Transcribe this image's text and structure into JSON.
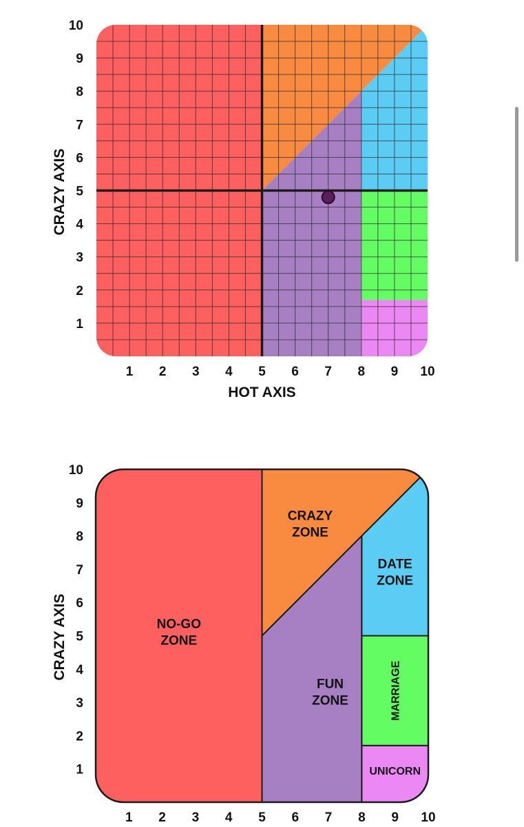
{
  "colors": {
    "nogo": "#fe5f5f",
    "crazy": "#f98b40",
    "fun": "#a77fc3",
    "date": "#5bcdf4",
    "marriage": "#63fd63",
    "unicorn": "#ec88f3",
    "point": "#5c1e5b",
    "line": "#1a1a1a"
  },
  "chart_data": [
    {
      "type": "scatter",
      "title": "",
      "xlabel": "HOT AXIS",
      "ylabel": "CRAZY AXIS",
      "xlim": [
        0,
        10
      ],
      "ylim": [
        0,
        10
      ],
      "x_ticks": [
        "1",
        "2",
        "3",
        "4",
        "5",
        "6",
        "7",
        "8",
        "9",
        "10"
      ],
      "y_ticks": [
        "1",
        "2",
        "3",
        "4",
        "5",
        "6",
        "7",
        "8",
        "9",
        "10"
      ],
      "grid": true,
      "grid_step": 0.5,
      "points": [
        {
          "x": 7,
          "y": 4.8
        }
      ],
      "center_lines": {
        "x": 5,
        "y": 5
      }
    },
    {
      "type": "area",
      "title": "",
      "xlabel": "",
      "ylabel": "CRAZY AXIS",
      "xlim": [
        0,
        10
      ],
      "ylim": [
        0,
        10
      ],
      "x_ticks": [
        "1",
        "2",
        "3",
        "4",
        "5",
        "6",
        "7",
        "8",
        "9",
        "10"
      ],
      "y_ticks": [
        "1",
        "2",
        "3",
        "4",
        "5",
        "6",
        "7",
        "8",
        "9",
        "10"
      ],
      "grid": false,
      "zones": [
        {
          "key": "nogo",
          "label_lines": [
            "NO-GO",
            "ZONE"
          ]
        },
        {
          "key": "crazy",
          "label_lines": [
            "CRAZY",
            "ZONE"
          ]
        },
        {
          "key": "fun",
          "label_lines": [
            "FUN",
            "ZONE"
          ]
        },
        {
          "key": "date",
          "label_lines": [
            "DATE",
            "ZONE"
          ]
        },
        {
          "key": "marriage",
          "label_lines": [
            "MARRIAGE"
          ]
        },
        {
          "key": "unicorn",
          "label_lines": [
            "UNICORN"
          ]
        }
      ],
      "boundaries": {
        "hot_split": 5,
        "date_split_x": 8,
        "marriage_top_y": 5,
        "unicorn_top_y": 1.7,
        "diagonal": {
          "from": [
            5,
            5
          ],
          "to": [
            10,
            10
          ]
        }
      }
    }
  ]
}
